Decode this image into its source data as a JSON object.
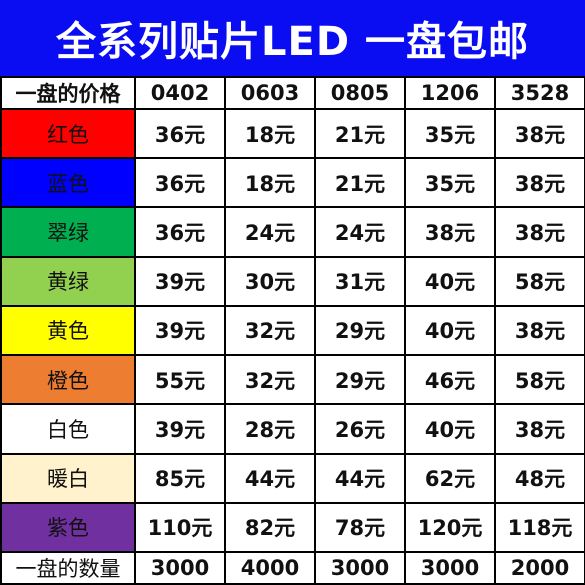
{
  "title": "全系列贴片LED  一盘包邮",
  "header": {
    "label": "一盘的价格",
    "columns": [
      "0402",
      "0603",
      "0805",
      "1206",
      "3528"
    ]
  },
  "rows": [
    {
      "name": "红色",
      "color": "#ff0000",
      "values": [
        "36元",
        "18元",
        "21元",
        "35元",
        "38元"
      ]
    },
    {
      "name": "蓝色",
      "color": "#0000ff",
      "values": [
        "36元",
        "18元",
        "21元",
        "35元",
        "38元"
      ]
    },
    {
      "name": "翠绿",
      "color": "#00b050",
      "values": [
        "36元",
        "24元",
        "24元",
        "38元",
        "38元"
      ]
    },
    {
      "name": "黄绿",
      "color": "#92d050",
      "values": [
        "39元",
        "30元",
        "31元",
        "40元",
        "58元"
      ]
    },
    {
      "name": "黄色",
      "color": "#ffff00",
      "values": [
        "39元",
        "32元",
        "29元",
        "40元",
        "38元"
      ]
    },
    {
      "name": "橙色",
      "color": "#ed7d31",
      "values": [
        "55元",
        "32元",
        "29元",
        "46元",
        "58元"
      ]
    },
    {
      "name": "白色",
      "color": "#ffffff",
      "values": [
        "39元",
        "28元",
        "26元",
        "40元",
        "38元"
      ]
    },
    {
      "name": "暖白",
      "color": "#fff2cc",
      "values": [
        "85元",
        "44元",
        "44元",
        "62元",
        "48元"
      ]
    },
    {
      "name": "紫色",
      "color": "#7030a0",
      "values": [
        "110元",
        "82元",
        "78元",
        "120元",
        "118元"
      ]
    }
  ],
  "footer": {
    "label": "一盘的数量",
    "values": [
      "3000",
      "4000",
      "3000",
      "3000",
      "2000"
    ]
  }
}
